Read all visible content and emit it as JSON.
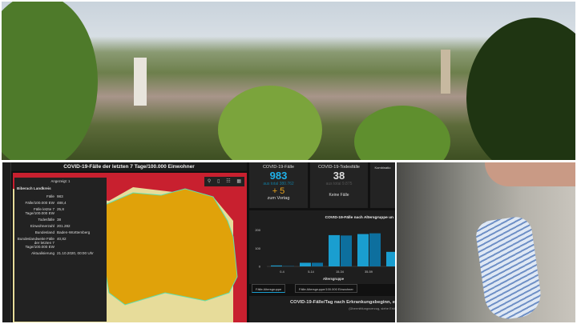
{
  "map": {
    "title": "COVID-19-Fälle der letzten 7 Tage/100.000 Einwohner",
    "popup": {
      "header": "Angezeigt: 1",
      "name": "Biberach Landkreis",
      "rows": [
        {
          "k": "Fälle",
          "v": "983"
        },
        {
          "k": "Fälle/100.000 EW",
          "v": "488,4"
        },
        {
          "k": "Fälle letzte 7 Tage/100.000 EW",
          "v": "25,8"
        },
        {
          "k": "Todesfälle",
          "v": "38"
        },
        {
          "k": "Einwohnerzahl",
          "v": "201.282"
        },
        {
          "k": "Bundesland",
          "v": "Baden-Württemberg"
        },
        {
          "k": "Bundeslandweite Fälle der letzten 7 Tage/100.000 EW",
          "v": "40,82"
        },
        {
          "k": "Aktualisierung",
          "v": "21.10.2020, 00:00 Uhr"
        }
      ]
    },
    "colors": {
      "high": "#c8202f",
      "mid": "#e0a20a",
      "low": "#e7dc9a"
    }
  },
  "cards": {
    "cases": {
      "title": "COVID-19-Fälle",
      "value": "983",
      "total": "aus total 380.762",
      "delta": "+ 5",
      "delta_label": "zum Vortag"
    },
    "deaths": {
      "title": "COVID-19-Todesfälle",
      "value": "38",
      "total": "aus total 9.875",
      "note": "Keine Fälle"
    },
    "combined": {
      "title": "Kombinatio"
    }
  },
  "chart_data": {
    "type": "bar",
    "title": "COVID-19-Fälle nach Altersgruppe un",
    "xlabel": "Altersgruppe",
    "ylim": [
      0,
      220
    ],
    "yticks": [
      0,
      100,
      200
    ],
    "categories": [
      "0-4",
      "5-14",
      "15-34",
      "35-59",
      ""
    ],
    "series": [
      {
        "values": [
          5,
          20,
          172,
          178,
          80
        ],
        "color": "#1a9ed0"
      },
      {
        "values": [
          2,
          20,
          170,
          182,
          null
        ],
        "color": "#0d6f9e"
      }
    ]
  },
  "tabs": [
    "Fälle Altersgruppe",
    "Fälle Altersgruppe/100.000 Einwohner"
  ],
  "bottom_panel": {
    "title": "COVID-19-Fälle/Tag nach Erkrankungsbeginn, e",
    "subtitle": "(Übermittlungsverzug, siehe Erkl"
  }
}
